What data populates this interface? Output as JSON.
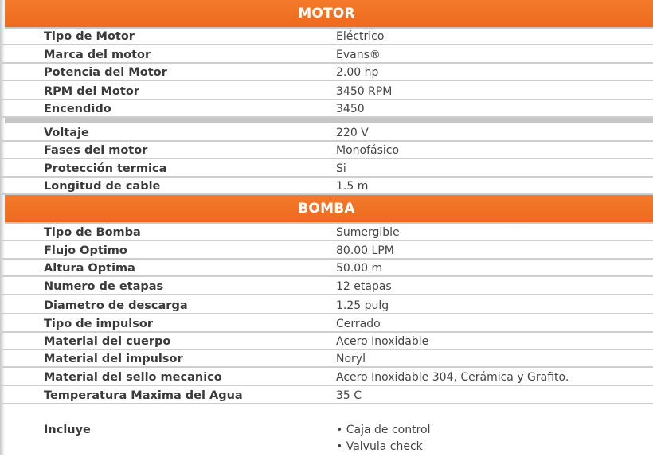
{
  "motor": {
    "title": "MOTOR",
    "rows_a": [
      {
        "label": "Tipo de Motor",
        "value": "Eléctrico"
      },
      {
        "label": "Marca del motor",
        "value": "Evans®"
      },
      {
        "label": "Potencia del Motor",
        "value": "2.00 hp"
      },
      {
        "label": "RPM del Motor",
        "value": "3450 RPM"
      },
      {
        "label": "Encendido",
        "value": "3450"
      }
    ],
    "rows_b": [
      {
        "label": "Voltaje",
        "value": "220 V"
      },
      {
        "label": "Fases del motor",
        "value": "Monofásico"
      },
      {
        "label": "Protección termica",
        "value": "Si"
      },
      {
        "label": "Longitud de cable",
        "value": "1.5 m"
      }
    ]
  },
  "bomba": {
    "title": "BOMBA",
    "rows": [
      {
        "label": "Tipo de Bomba",
        "value": "Sumergible"
      },
      {
        "label": "Flujo Optimo",
        "value": "80.00 LPM"
      },
      {
        "label": "Altura Optima",
        "value": "50.00 m"
      },
      {
        "label": "Numero de etapas",
        "value": "12 etapas"
      },
      {
        "label": "Diametro de descarga",
        "value": "1.25 pulg"
      },
      {
        "label": "Tipo de impulsor",
        "value": "Cerrado"
      },
      {
        "label": "Material del cuerpo",
        "value": "Acero Inoxidable"
      },
      {
        "label": "Material del impulsor",
        "value": "Noryl"
      },
      {
        "label": "Material del sello mecanico",
        "value": "Acero Inoxidable 304, Cerámica y Grafito."
      },
      {
        "label": "Temperatura Maxima del Agua",
        "value": "35 C"
      }
    ],
    "includes": {
      "label": "Incluye",
      "items": [
        "Caja de control",
        "Valvula check"
      ]
    }
  },
  "colors": {
    "accent": "#f07022",
    "divider": "#cfcfcf"
  }
}
